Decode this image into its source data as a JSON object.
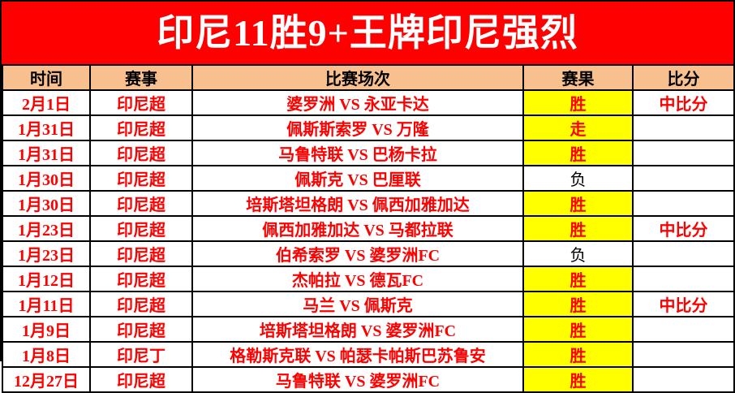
{
  "banner": {
    "title": "印尼11胜9+王牌印尼强烈"
  },
  "chart_data": {
    "type": "table",
    "title": "印尼11胜9+王牌印尼强烈",
    "columns": [
      "时间",
      "赛事",
      "比赛场次",
      "赛果",
      "比分"
    ],
    "rows": [
      {
        "date": "2月1日",
        "league": "印尼超",
        "match": "婆罗洲 VS 永亚卡达",
        "result": "胜",
        "highlighted": true,
        "score": "中比分"
      },
      {
        "date": "1月31日",
        "league": "印尼超",
        "match": "佩斯斯索罗 VS 万隆",
        "result": "走",
        "highlighted": true,
        "score": ""
      },
      {
        "date": "1月31日",
        "league": "印尼超",
        "match": "马鲁特联 VS 巴杨卡拉",
        "result": "胜",
        "highlighted": true,
        "score": ""
      },
      {
        "date": "1月30日",
        "league": "印尼超",
        "match": "佩斯克 VS 巴厘联",
        "result": "负",
        "highlighted": false,
        "score": ""
      },
      {
        "date": "1月30日",
        "league": "印尼超",
        "match": "培斯塔坦格朗 VS 佩西加雅加达",
        "result": "胜",
        "highlighted": true,
        "score": ""
      },
      {
        "date": "1月23日",
        "league": "印尼超",
        "match": "佩西加雅加达 VS 马都拉联",
        "result": "胜",
        "highlighted": true,
        "score": "中比分"
      },
      {
        "date": "1月23日",
        "league": "印尼超",
        "match": "伯希索罗 VS 婆罗洲FC",
        "result": "负",
        "highlighted": false,
        "score": ""
      },
      {
        "date": "1月12日",
        "league": "印尼超",
        "match": "杰帕拉 VS 德瓦FC",
        "result": "胜",
        "highlighted": true,
        "score": ""
      },
      {
        "date": "1月11日",
        "league": "印尼超",
        "match": "马兰 VS 佩斯克",
        "result": "胜",
        "highlighted": true,
        "score": "中比分"
      },
      {
        "date": "1月9日",
        "league": "印尼超",
        "match": "培斯塔坦格朗 VS 婆罗洲FC",
        "result": "胜",
        "highlighted": true,
        "score": ""
      },
      {
        "date": "1月8日",
        "league": "印尼丁",
        "match": "格勒斯克联 VS 帕瑟卡帕斯巴苏鲁安",
        "result": "胜",
        "highlighted": true,
        "score": ""
      },
      {
        "date": "12月27日",
        "league": "印尼超",
        "match": "马鲁特联 VS 婆罗洲FC",
        "result": "胜",
        "highlighted": true,
        "score": ""
      }
    ]
  },
  "colors": {
    "banner_bg": "#fe0000",
    "banner_text": "#ffffff",
    "header_bg": "#f8c08e",
    "highlight_bg": "#ffff00",
    "text_red": "#fe0000",
    "text_black": "#000000",
    "border": "#000000"
  }
}
